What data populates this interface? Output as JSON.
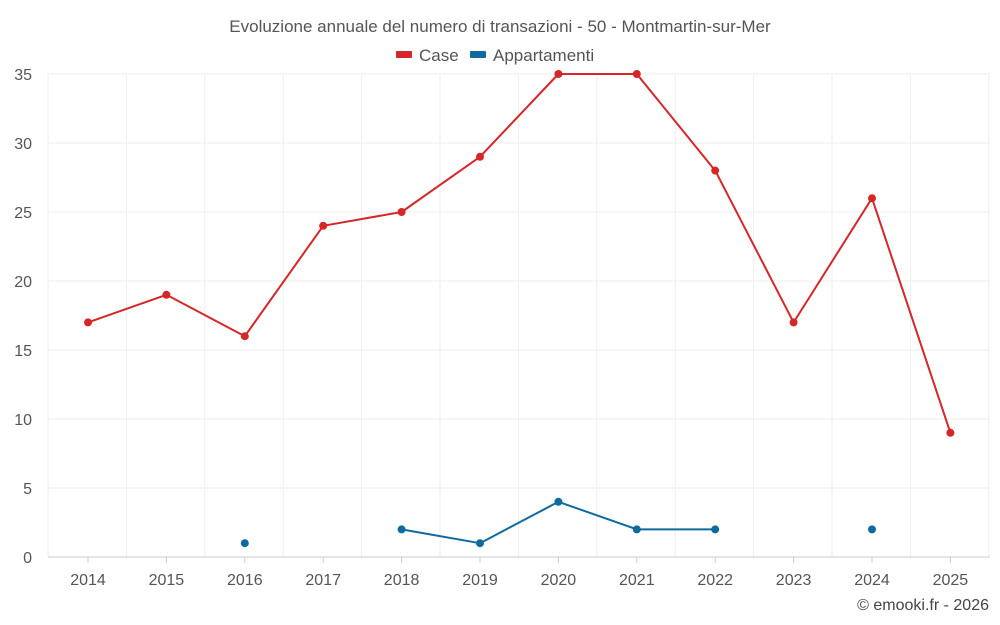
{
  "chart_data": {
    "type": "line",
    "title": "Evoluzione annuale del numero di transazioni - 50 - Montmartin-sur-Mer",
    "categories": [
      "2014",
      "2015",
      "2016",
      "2017",
      "2018",
      "2019",
      "2020",
      "2021",
      "2022",
      "2023",
      "2024",
      "2025"
    ],
    "series": [
      {
        "name": "Case",
        "color": "#d62728",
        "values": [
          17,
          19,
          16,
          24,
          25,
          29,
          35,
          35,
          28,
          17,
          26,
          9
        ]
      },
      {
        "name": "Appartamenti",
        "color": "#0f6aa0",
        "values": [
          null,
          null,
          1,
          null,
          2,
          1,
          4,
          2,
          2,
          null,
          2,
          null
        ]
      }
    ],
    "ylim": [
      0,
      35
    ],
    "yticks": [
      0,
      5,
      10,
      15,
      20,
      25,
      30,
      35
    ],
    "xlabel": "",
    "ylabel": "",
    "grid": true,
    "legend": "top-center"
  },
  "credit": "© emooki.fr - 2026"
}
